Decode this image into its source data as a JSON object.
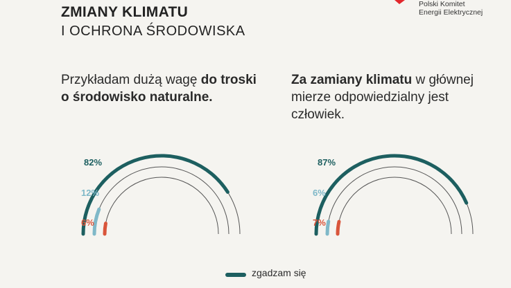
{
  "header": {
    "title": "ZMIANY KLIMATU",
    "subtitle": "I OCHRONA ŚRODOWISKA"
  },
  "logo": {
    "line1": "Polski Komitet",
    "line2": "Energii Elektrycznej",
    "color": "#e2262c"
  },
  "colors": {
    "agree": "#1d5f60",
    "neutral": "#7fb8c8",
    "disagree": "#d9553b",
    "track": "#555555"
  },
  "statements": [
    {
      "part1": "Przykładam dużą wagę ",
      "bold1": "do troski",
      "part2": "",
      "bold2": "o środowisko naturalne."
    },
    {
      "bold1": "Za zamiany klimatu",
      "part1": " w głównej",
      "part2": "mierze odpowiedzialny jest",
      "part3": "człowiek."
    }
  ],
  "legend": {
    "agree_label": "zgadzam się"
  },
  "chart_data": [
    {
      "type": "radial-bar",
      "series": [
        {
          "value": 82,
          "label": "82%"
        },
        {
          "value": 12,
          "label": "12%"
        },
        {
          "value": 6,
          "label": "6%"
        }
      ]
    },
    {
      "type": "radial-bar",
      "series": [
        {
          "value": 87,
          "label": "87%"
        },
        {
          "value": 6,
          "label": "6%"
        },
        {
          "value": 7,
          "label": "7%"
        }
      ]
    }
  ]
}
